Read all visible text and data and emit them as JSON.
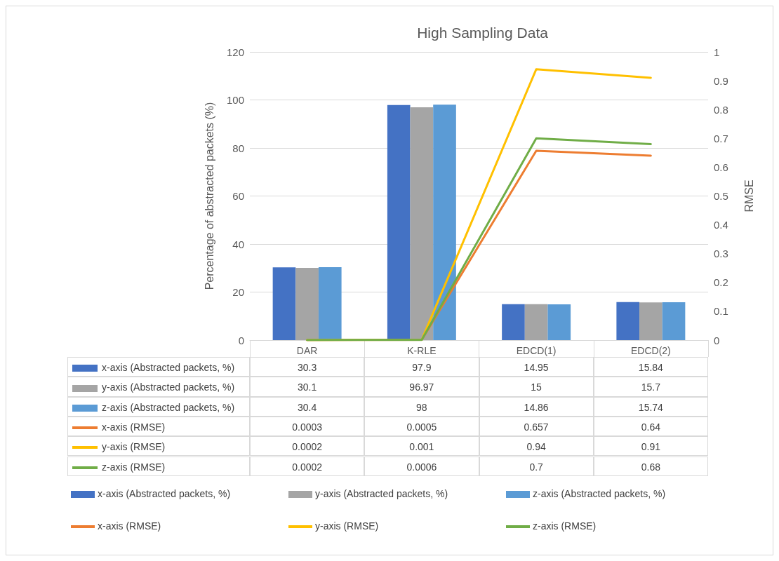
{
  "chart_data": {
    "type": "bar",
    "title": "High Sampling Data",
    "ylabel": "Percentage of abstracted packets (%)",
    "y2label": "RMSE",
    "categories": [
      "DAR",
      "K-RLE",
      "EDCD(1)",
      "EDCD(2)"
    ],
    "series": [
      {
        "name": "x-axis (Abstracted packets, %)",
        "color": "#4472c4",
        "values": [
          30.3,
          97.9,
          14.95,
          15.84
        ]
      },
      {
        "name": "y-axis (Abstracted packets, %)",
        "color": "#a5a5a5",
        "values": [
          30.1,
          96.97,
          15,
          15.7
        ]
      },
      {
        "name": "z-axis (Abstracted packets, %)",
        "color": "#5b9bd5",
        "values": [
          30.4,
          98,
          14.86,
          15.74
        ]
      },
      {
        "name": "x-axis (RMSE)",
        "type": "line",
        "axis": "y2",
        "color": "#ed7d31",
        "values": [
          0.0003,
          0.0005,
          0.657,
          0.64
        ]
      },
      {
        "name": "y-axis (RMSE)",
        "type": "line",
        "axis": "y2",
        "color": "#ffc000",
        "values": [
          0.0002,
          0.001,
          0.94,
          0.91
        ]
      },
      {
        "name": "z-axis (RMSE)",
        "type": "line",
        "axis": "y2",
        "color": "#70ad47",
        "values": [
          0.0002,
          0.0006,
          0.7,
          0.68
        ]
      }
    ],
    "ylim": [
      0,
      120
    ],
    "yticks": [
      0,
      20,
      40,
      60,
      80,
      100,
      120
    ],
    "y2lim": [
      0,
      1
    ],
    "y2ticks": [
      0,
      0.1,
      0.2,
      0.3,
      0.4,
      0.5,
      0.6,
      0.7,
      0.8,
      0.9,
      1
    ],
    "grid": "y",
    "legend": "bottom",
    "data_labels": true,
    "marker": "none",
    "line_style": "solid"
  }
}
